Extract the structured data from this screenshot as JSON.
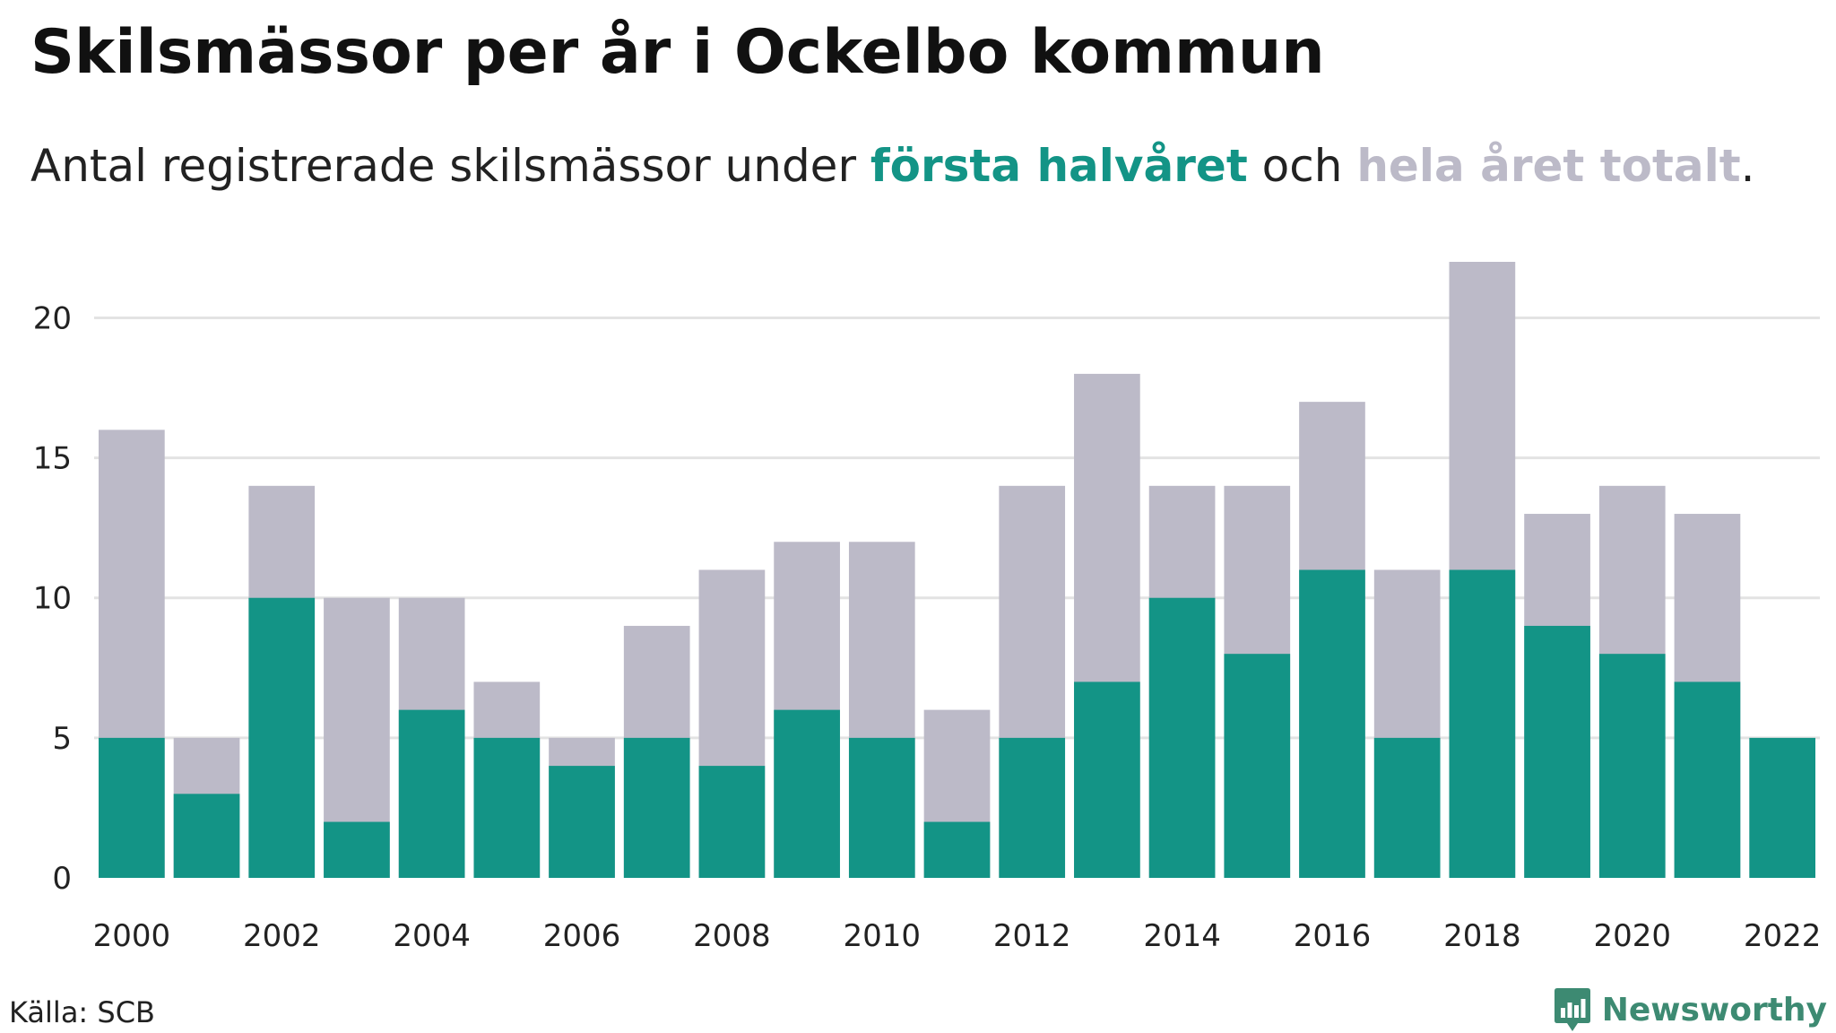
{
  "header": {
    "title": "Skilsmässor per år i Ockelbo kommun",
    "subtitle_prefix": "Antal registrerade skilsmässor under ",
    "subtitle_first": "första halvåret",
    "subtitle_middle": " och ",
    "subtitle_total": "hela året totalt",
    "subtitle_suffix": "."
  },
  "footer": {
    "source": "Källa: SCB",
    "brand": "Newsworthy"
  },
  "icons": {
    "brand": "newsworthy-logo-icon"
  },
  "colors": {
    "first_half": "#139486",
    "full_year": "#bcbac8",
    "grid": "#e3e3e3",
    "brand": "#3d8a72"
  },
  "chart_data": {
    "type": "bar",
    "title": "Skilsmässor per år i Ockelbo kommun",
    "xlabel": "",
    "ylabel": "",
    "ylim": [
      0,
      22
    ],
    "yticks": [
      0,
      5,
      10,
      15,
      20
    ],
    "xticks": [
      "2000",
      "2002",
      "2004",
      "2006",
      "2008",
      "2010",
      "2012",
      "2014",
      "2016",
      "2018",
      "2020",
      "2022"
    ],
    "grid": true,
    "legend": "inline in subtitle",
    "categories": [
      "2000",
      "2001",
      "2002",
      "2003",
      "2004",
      "2005",
      "2006",
      "2007",
      "2008",
      "2009",
      "2010",
      "2011",
      "2012",
      "2013",
      "2014",
      "2015",
      "2016",
      "2017",
      "2018",
      "2019",
      "2020",
      "2021",
      "2022"
    ],
    "series": [
      {
        "name": "hela året totalt",
        "values": [
          16,
          5,
          14,
          10,
          10,
          7,
          5,
          9,
          11,
          12,
          12,
          6,
          14,
          18,
          14,
          14,
          17,
          11,
          22,
          13,
          14,
          13,
          null
        ]
      },
      {
        "name": "första halvåret",
        "values": [
          5,
          3,
          10,
          2,
          6,
          5,
          4,
          5,
          4,
          6,
          5,
          2,
          5,
          7,
          10,
          8,
          11,
          5,
          11,
          9,
          8,
          7,
          5
        ]
      }
    ]
  }
}
